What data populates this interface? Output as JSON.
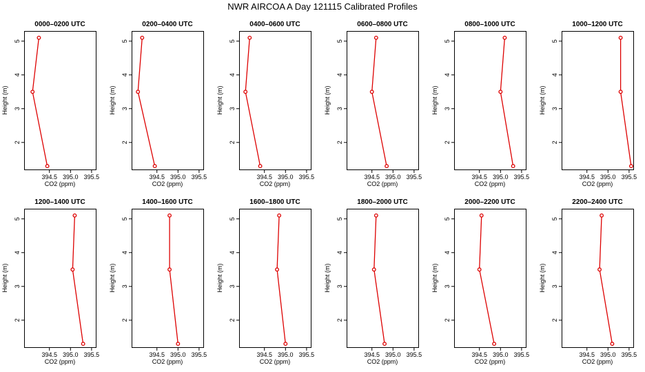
{
  "title": "NWR AIRCOA A   Day 121115   Calibrated Profiles",
  "series_color": "#dd0000",
  "chart_data": [
    {
      "type": "line",
      "title": "0000–0200 UTC",
      "xlabel": "CO2 (ppm)",
      "ylabel": "Height (m)",
      "xlim": [
        393.9,
        395.6
      ],
      "ylim": [
        1.2,
        5.3
      ],
      "xticks": [
        394.5,
        395.0,
        395.5
      ],
      "xtick_labels": [
        "394.5",
        "395.0",
        "395.5"
      ],
      "yticks": [
        2,
        3,
        4,
        5
      ],
      "ytick_labels": [
        "2",
        "3",
        "4",
        "5"
      ],
      "x": [
        394.45,
        394.1,
        394.25
      ],
      "y": [
        1.3,
        3.5,
        5.1
      ]
    },
    {
      "type": "line",
      "title": "0200–0400 UTC",
      "xlabel": "CO2 (ppm)",
      "ylabel": "Height (m)",
      "xlim": [
        393.9,
        395.6
      ],
      "ylim": [
        1.2,
        5.3
      ],
      "xticks": [
        394.5,
        395.0,
        395.5
      ],
      "xtick_labels": [
        "394.5",
        "395.0",
        "395.5"
      ],
      "yticks": [
        2,
        3,
        4,
        5
      ],
      "ytick_labels": [
        "2",
        "3",
        "4",
        "5"
      ],
      "x": [
        394.45,
        394.05,
        394.15
      ],
      "y": [
        1.3,
        3.5,
        5.1
      ]
    },
    {
      "type": "line",
      "title": "0400–0600 UTC",
      "xlabel": "CO2 (ppm)",
      "ylabel": "Height (m)",
      "xlim": [
        393.9,
        395.6
      ],
      "ylim": [
        1.2,
        5.3
      ],
      "xticks": [
        394.5,
        395.0,
        395.5
      ],
      "xtick_labels": [
        "394.5",
        "395.0",
        "395.5"
      ],
      "yticks": [
        2,
        3,
        4,
        5
      ],
      "ytick_labels": [
        "2",
        "3",
        "4",
        "5"
      ],
      "x": [
        394.4,
        394.05,
        394.15
      ],
      "y": [
        1.3,
        3.5,
        5.1
      ]
    },
    {
      "type": "line",
      "title": "0600–0800 UTC",
      "xlabel": "CO2 (ppm)",
      "ylabel": "Height (m)",
      "xlim": [
        393.9,
        395.6
      ],
      "ylim": [
        1.2,
        5.3
      ],
      "xticks": [
        394.5,
        395.0,
        395.5
      ],
      "xtick_labels": [
        "394.5",
        "395.0",
        "395.5"
      ],
      "yticks": [
        2,
        3,
        4,
        5
      ],
      "ytick_labels": [
        "2",
        "3",
        "4",
        "5"
      ],
      "x": [
        394.85,
        394.5,
        394.6
      ],
      "y": [
        1.3,
        3.5,
        5.1
      ]
    },
    {
      "type": "line",
      "title": "0800–1000 UTC",
      "xlabel": "CO2 (ppm)",
      "ylabel": "Height (m)",
      "xlim": [
        393.9,
        395.6
      ],
      "ylim": [
        1.2,
        5.3
      ],
      "xticks": [
        394.5,
        395.0,
        395.5
      ],
      "xtick_labels": [
        "394.5",
        "395.0",
        "395.5"
      ],
      "yticks": [
        2,
        3,
        4,
        5
      ],
      "ytick_labels": [
        "2",
        "3",
        "4",
        "5"
      ],
      "x": [
        395.3,
        395.0,
        395.1
      ],
      "y": [
        1.3,
        3.5,
        5.1
      ]
    },
    {
      "type": "line",
      "title": "1000–1200 UTC",
      "xlabel": "CO2 (ppm)",
      "ylabel": "Height (m)",
      "xlim": [
        393.9,
        395.6
      ],
      "ylim": [
        1.2,
        5.3
      ],
      "xticks": [
        394.5,
        395.0,
        395.5
      ],
      "xtick_labels": [
        "394.5",
        "395.0",
        "395.5"
      ],
      "yticks": [
        2,
        3,
        4,
        5
      ],
      "ytick_labels": [
        "2",
        "3",
        "4",
        "5"
      ],
      "x": [
        395.55,
        395.3,
        395.3
      ],
      "y": [
        1.3,
        3.5,
        5.1
      ]
    },
    {
      "type": "line",
      "title": "1200–1400 UTC",
      "xlabel": "CO2 (ppm)",
      "ylabel": "Height (m)",
      "xlim": [
        393.9,
        395.6
      ],
      "ylim": [
        1.2,
        5.3
      ],
      "xticks": [
        394.5,
        395.0,
        395.5
      ],
      "xtick_labels": [
        "394.5",
        "395.0",
        "395.5"
      ],
      "yticks": [
        2,
        3,
        4,
        5
      ],
      "ytick_labels": [
        "2",
        "3",
        "4",
        "5"
      ],
      "x": [
        395.3,
        395.05,
        395.1
      ],
      "y": [
        1.3,
        3.5,
        5.1
      ]
    },
    {
      "type": "line",
      "title": "1400–1600 UTC",
      "xlabel": "CO2 (ppm)",
      "ylabel": "Height (m)",
      "xlim": [
        393.9,
        395.6
      ],
      "ylim": [
        1.2,
        5.3
      ],
      "xticks": [
        394.5,
        395.0,
        395.5
      ],
      "xtick_labels": [
        "394.5",
        "395.0",
        "395.5"
      ],
      "yticks": [
        2,
        3,
        4,
        5
      ],
      "ytick_labels": [
        "2",
        "3",
        "4",
        "5"
      ],
      "x": [
        395.0,
        394.8,
        394.8
      ],
      "y": [
        1.3,
        3.5,
        5.1
      ]
    },
    {
      "type": "line",
      "title": "1600–1800 UTC",
      "xlabel": "CO2 (ppm)",
      "ylabel": "Height (m)",
      "xlim": [
        393.9,
        395.6
      ],
      "ylim": [
        1.2,
        5.3
      ],
      "xticks": [
        394.5,
        395.0,
        395.5
      ],
      "xtick_labels": [
        "394.5",
        "395.0",
        "395.5"
      ],
      "yticks": [
        2,
        3,
        4,
        5
      ],
      "ytick_labels": [
        "2",
        "3",
        "4",
        "5"
      ],
      "x": [
        395.0,
        394.8,
        394.85
      ],
      "y": [
        1.3,
        3.5,
        5.1
      ]
    },
    {
      "type": "line",
      "title": "1800–2000 UTC",
      "xlabel": "CO2 (ppm)",
      "ylabel": "Height (m)",
      "xlim": [
        393.9,
        395.6
      ],
      "ylim": [
        1.2,
        5.3
      ],
      "xticks": [
        394.5,
        395.0,
        395.5
      ],
      "xtick_labels": [
        "394.5",
        "395.0",
        "395.5"
      ],
      "yticks": [
        2,
        3,
        4,
        5
      ],
      "ytick_labels": [
        "2",
        "3",
        "4",
        "5"
      ],
      "x": [
        394.8,
        394.55,
        394.6
      ],
      "y": [
        1.3,
        3.5,
        5.1
      ]
    },
    {
      "type": "line",
      "title": "2000–2200 UTC",
      "xlabel": "CO2 (ppm)",
      "ylabel": "Height (m)",
      "xlim": [
        393.9,
        395.6
      ],
      "ylim": [
        1.2,
        5.3
      ],
      "xticks": [
        394.5,
        395.0,
        395.5
      ],
      "xtick_labels": [
        "394.5",
        "395.0",
        "395.5"
      ],
      "yticks": [
        2,
        3,
        4,
        5
      ],
      "ytick_labels": [
        "2",
        "3",
        "4",
        "5"
      ],
      "x": [
        394.85,
        394.5,
        394.55
      ],
      "y": [
        1.3,
        3.5,
        5.1
      ]
    },
    {
      "type": "line",
      "title": "2200–2400 UTC",
      "xlabel": "CO2 (ppm)",
      "ylabel": "Height (m)",
      "xlim": [
        393.9,
        395.6
      ],
      "ylim": [
        1.2,
        5.3
      ],
      "xticks": [
        394.5,
        395.0,
        395.5
      ],
      "xtick_labels": [
        "394.5",
        "395.0",
        "395.5"
      ],
      "yticks": [
        2,
        3,
        4,
        5
      ],
      "ytick_labels": [
        "2",
        "3",
        "4",
        "5"
      ],
      "x": [
        395.1,
        394.8,
        394.85
      ],
      "y": [
        1.3,
        3.5,
        5.1
      ]
    }
  ]
}
